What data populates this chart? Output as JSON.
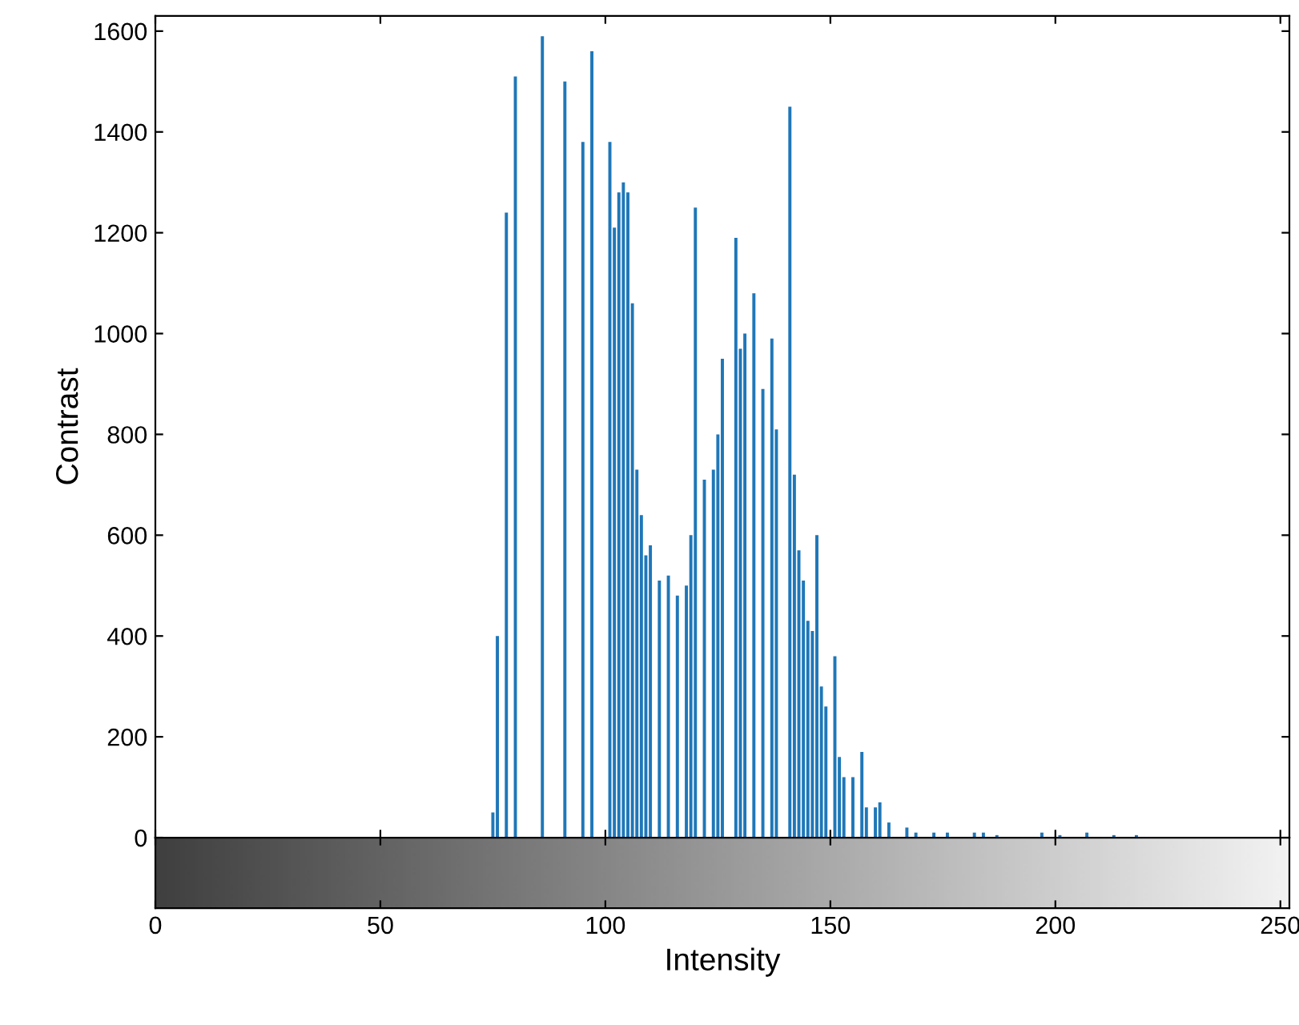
{
  "chart_data": {
    "type": "bar",
    "xlabel": "Intensity",
    "ylabel": "Contrast",
    "color": "#1f77b8",
    "x": [
      75,
      76,
      78,
      80,
      82,
      83,
      86,
      87,
      89,
      91,
      93,
      94,
      95,
      97,
      98,
      101,
      102,
      103,
      104,
      105,
      106,
      107,
      108,
      109,
      110,
      112,
      114,
      116,
      118,
      119,
      120,
      122,
      124,
      125,
      126,
      127,
      129,
      130,
      131,
      132,
      133,
      135,
      136,
      137,
      138,
      141,
      142,
      143,
      144,
      145,
      146,
      147,
      148,
      149,
      151,
      152,
      153,
      155,
      157,
      158,
      160,
      161,
      163,
      167,
      169,
      173,
      176,
      182,
      184,
      187,
      197,
      201,
      207,
      213,
      218
    ],
    "values": [
      50,
      400,
      1240,
      1510,
      null,
      null,
      1590,
      null,
      null,
      1500,
      null,
      null,
      1380,
      1560,
      null,
      1380,
      1210,
      1280,
      1300,
      1280,
      1060,
      730,
      640,
      560,
      580,
      510,
      520,
      480,
      500,
      600,
      1250,
      710,
      730,
      800,
      950,
      null,
      1190,
      970,
      1000,
      null,
      1080,
      890,
      null,
      990,
      810,
      1450,
      720,
      570,
      510,
      430,
      410,
      600,
      300,
      260,
      360,
      160,
      120,
      120,
      170,
      60,
      60,
      70,
      30,
      20,
      10,
      10,
      10,
      10,
      10,
      5,
      10,
      5,
      10,
      5,
      5
    ],
    "xlim": [
      0,
      252
    ],
    "ylim": [
      0,
      1630
    ],
    "xticks": [
      0,
      50,
      100,
      150,
      200,
      250
    ],
    "yticks": [
      0,
      200,
      400,
      600,
      800,
      1000,
      1200,
      1400,
      1600
    ],
    "grid": false
  }
}
